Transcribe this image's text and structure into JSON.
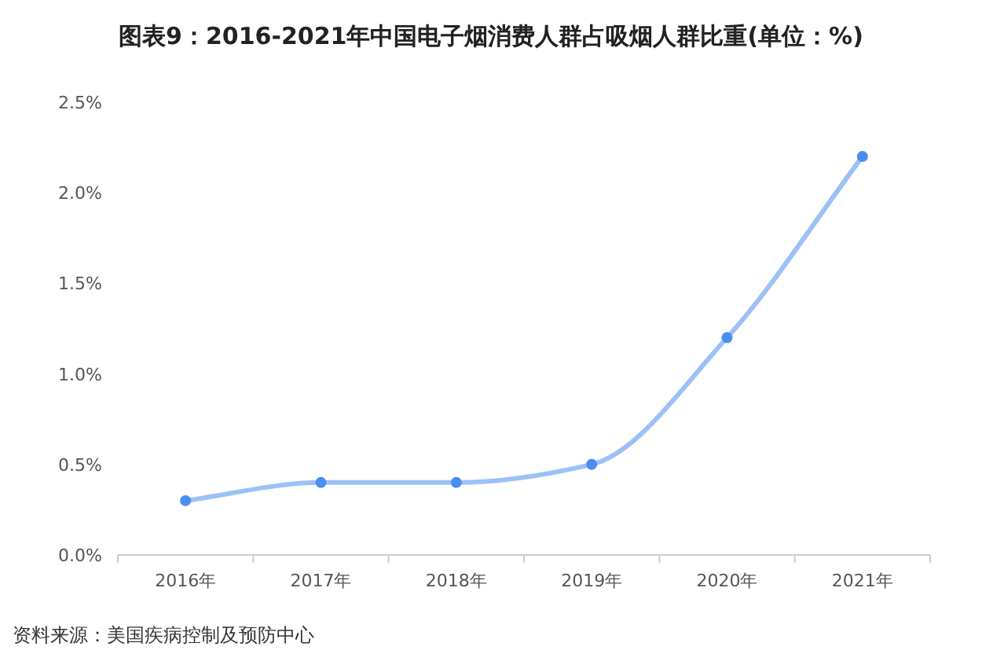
{
  "chart_data": {
    "type": "line",
    "title": "图表9：2016-2021年中国电子烟消费人群占吸烟人群比重(单位：%)",
    "categories": [
      "2016年",
      "2017年",
      "2018年",
      "2019年",
      "2020年",
      "2021年"
    ],
    "series": [
      {
        "color": "#4a8ef0",
        "values": [
          0.3,
          0.4,
          0.4,
          0.5,
          1.2,
          2.2
        ]
      }
    ],
    "ylim": [
      0,
      2.5
    ],
    "yticks": [
      {
        "value": 0,
        "label": "0.0%"
      },
      {
        "value": 0.5,
        "label": "0.5%"
      },
      {
        "value": 1,
        "label": "1.0%"
      },
      {
        "value": 1.5,
        "label": "1.5%"
      },
      {
        "value": 2,
        "label": "2.0%"
      },
      {
        "value": 2.5,
        "label": "2.5%"
      }
    ],
    "grid": false,
    "marker": "circle",
    "line_style": "solid",
    "annotations": [
      "资料来源：美国疾病控制及预防中心"
    ]
  }
}
